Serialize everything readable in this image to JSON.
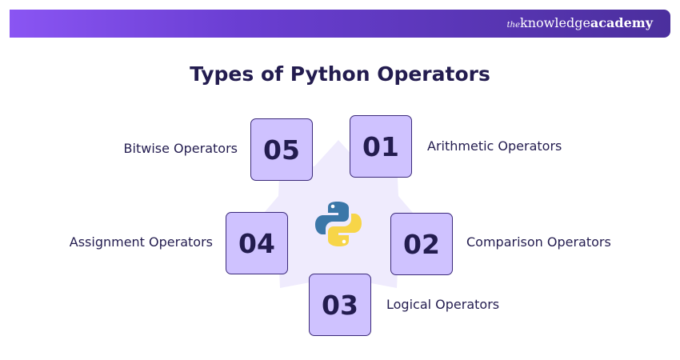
{
  "brand": {
    "prefix": "the",
    "name_light": "knowledge",
    "name_bold": "academy"
  },
  "title": "Types of Python Operators",
  "center_icon": "python-logo-icon",
  "colors": {
    "box_fill": "#cfc2ff",
    "box_border": "#3b2a7a",
    "text": "#231c4f",
    "banner_start": "#8a55f3",
    "banner_end": "#4b2f9d"
  },
  "items": [
    {
      "number": "01",
      "label": "Arithmetic Operators"
    },
    {
      "number": "02",
      "label": "Comparison Operators"
    },
    {
      "number": "03",
      "label": "Logical Operators"
    },
    {
      "number": "04",
      "label": "Assignment Operators"
    },
    {
      "number": "05",
      "label": "Bitwise Operators"
    }
  ]
}
